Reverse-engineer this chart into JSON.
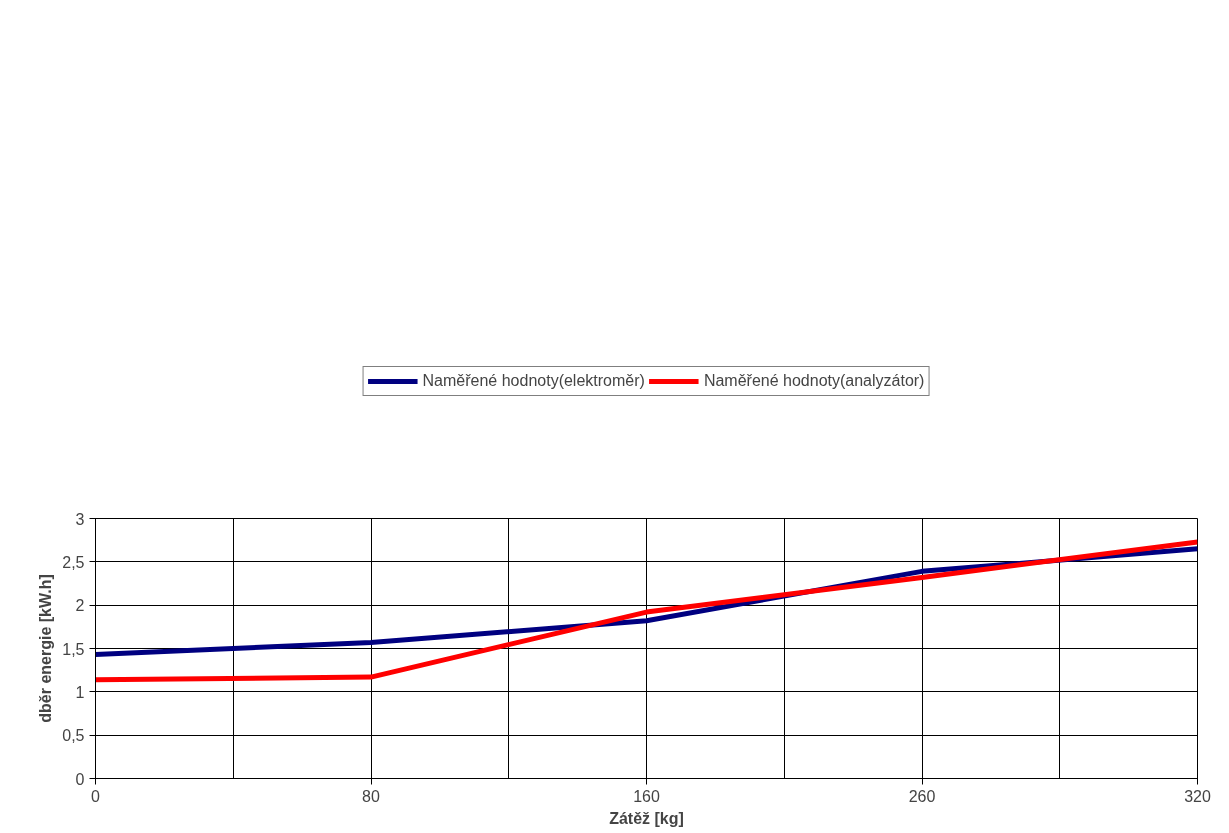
{
  "chart_data": {
    "type": "line",
    "xlabel": "Zátěž [kg]",
    "ylabel": "dběr energie [kW.h]",
    "categories": [
      "0",
      "80",
      "160",
      "260",
      "320"
    ],
    "series": [
      {
        "name": "Naměřené hodnoty(elektroměr)",
        "color": "#000080",
        "values": [
          1.43,
          1.57,
          1.82,
          2.39,
          2.65
        ]
      },
      {
        "name": "Naměřené hodnoty(analyzátor)",
        "color": "#ff0000",
        "values": [
          1.14,
          1.17,
          1.92,
          2.32,
          2.73
        ]
      }
    ],
    "ylim": [
      0,
      3
    ],
    "yticks": [
      0,
      {
        "value": 0.5,
        "label": "0,5"
      },
      1,
      {
        "value": 1.5,
        "label": "1,5"
      },
      2,
      {
        "value": 2.5,
        "label": "2,5"
      },
      3
    ],
    "grid": true,
    "legend": "top",
    "marker": "none",
    "line_style": "solid"
  }
}
